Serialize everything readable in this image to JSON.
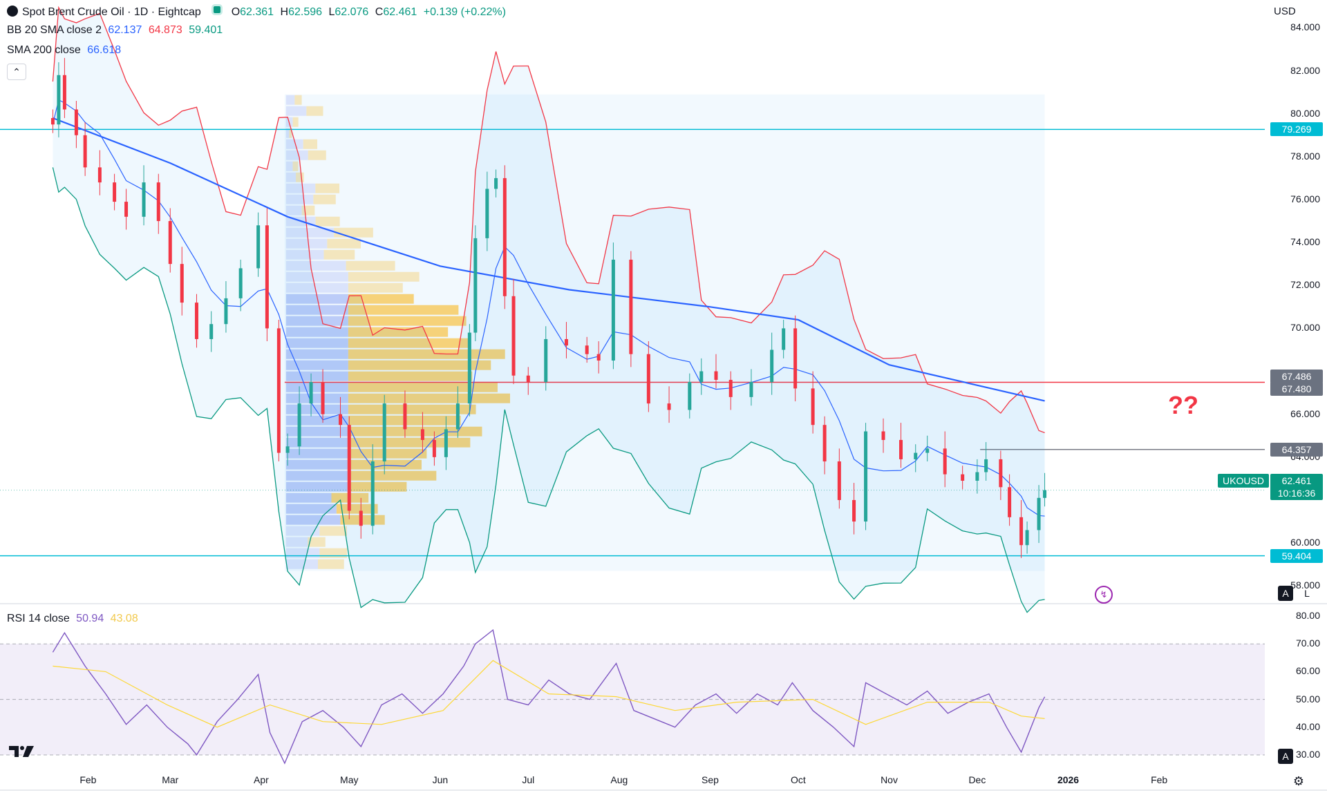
{
  "header": {
    "title": "Spot Brent Crude Oil · 1D · Eightcap",
    "ohlc": {
      "o_label": "O",
      "o": "62.361",
      "h_label": "H",
      "h": "62.596",
      "l_label": "L",
      "l": "62.076",
      "c_label": "C",
      "c": "62.461",
      "change": "+0.139 (+0.22%)"
    },
    "currency": "USD"
  },
  "indicators": {
    "bb": {
      "label": "BB 20 SMA close 2",
      "basis": "62.137",
      "upper": "64.873",
      "lower": "59.401"
    },
    "sma": {
      "label": "SMA 200 close",
      "value": "66.618"
    },
    "rsi": {
      "label": "RSI 14 close",
      "value": "50.94",
      "ma": "43.08"
    }
  },
  "price_axis": {
    "ticks": [
      "84.000",
      "82.000",
      "80.000",
      "78.000",
      "76.000",
      "74.000",
      "72.000",
      "70.000",
      "66.000",
      "64.000",
      "60.000",
      "58.000"
    ],
    "badges": [
      {
        "value": "79.269",
        "color": "#00bcd4"
      },
      {
        "value": "67.486",
        "color": "#6b7280"
      },
      {
        "value": "67.480",
        "color": "#6b7280"
      },
      {
        "value": "64.357",
        "color": "#6b7280"
      },
      {
        "value": "59.404",
        "color": "#00bcd4"
      }
    ],
    "symbol_tag": "UKOUSD",
    "last_price": "62.461",
    "countdown": "10:16:36"
  },
  "rsi_axis": {
    "ticks": [
      "80.00",
      "70.00",
      "60.00",
      "50.00",
      "40.00",
      "30.00"
    ]
  },
  "time_axis": {
    "ticks": [
      "Feb",
      "Mar",
      "Apr",
      "May",
      "Jun",
      "Jul",
      "Aug",
      "Sep",
      "Oct",
      "Nov",
      "Dec",
      "2026",
      "Feb"
    ]
  },
  "annotation": "??",
  "controls": {
    "auto_label": "A",
    "log_label": "L",
    "rsi_auto_label": "A"
  },
  "colors": {
    "up": "#26a69a",
    "down": "#f23645",
    "sma200": "#2962ff",
    "bb_upper": "#f23645",
    "bb_lower": "#089981",
    "bb_basis": "#2962ff",
    "level_cyan": "#00bcd4",
    "level_red": "#f23645",
    "rsi": "#7e57c2",
    "rsi_ma": "#fdd835"
  },
  "chart_data": {
    "type": "candlestick",
    "title": "Spot Brent Crude Oil · 1D · Eightcap",
    "timeframe": "1D",
    "ylim": [
      57.3,
      85.3
    ],
    "price_levels": [
      79.269,
      67.486,
      67.48,
      64.357,
      59.404
    ],
    "volume_profile_range": {
      "from": "2025-04-09",
      "to": "2025-12-24",
      "high": 80.9,
      "low": 58.7,
      "poc": 67.48
    },
    "sma200_line": [
      {
        "date": "2025-01-20",
        "value": 79.8
      },
      {
        "date": "2025-03-01",
        "value": 77.7
      },
      {
        "date": "2025-04-10",
        "value": 75.2
      },
      {
        "date": "2025-06-01",
        "value": 72.9
      },
      {
        "date": "2025-07-15",
        "value": 71.8
      },
      {
        "date": "2025-09-01",
        "value": 71.0
      },
      {
        "date": "2025-10-01",
        "value": 70.4
      },
      {
        "date": "2025-11-01",
        "value": 68.3
      },
      {
        "date": "2025-12-24",
        "value": 66.62
      }
    ],
    "closes": [
      {
        "date": "2025-01-20",
        "value": 79.5
      },
      {
        "date": "2025-01-22",
        "value": 81.8
      },
      {
        "date": "2025-01-24",
        "value": 80.2
      },
      {
        "date": "2025-01-28",
        "value": 79.0
      },
      {
        "date": "2025-01-31",
        "value": 77.5
      },
      {
        "date": "2025-02-05",
        "value": 76.8
      },
      {
        "date": "2025-02-10",
        "value": 75.9
      },
      {
        "date": "2025-02-14",
        "value": 75.2
      },
      {
        "date": "2025-02-20",
        "value": 76.8
      },
      {
        "date": "2025-02-25",
        "value": 75.0
      },
      {
        "date": "2025-03-01",
        "value": 73.0
      },
      {
        "date": "2025-03-05",
        "value": 71.2
      },
      {
        "date": "2025-03-10",
        "value": 69.5
      },
      {
        "date": "2025-03-15",
        "value": 70.2
      },
      {
        "date": "2025-03-20",
        "value": 71.4
      },
      {
        "date": "2025-03-25",
        "value": 72.8
      },
      {
        "date": "2025-03-31",
        "value": 74.8
      },
      {
        "date": "2025-04-03",
        "value": 70.0
      },
      {
        "date": "2025-04-07",
        "value": 64.2
      },
      {
        "date": "2025-04-10",
        "value": 64.5
      },
      {
        "date": "2025-04-14",
        "value": 66.5
      },
      {
        "date": "2025-04-18",
        "value": 67.5
      },
      {
        "date": "2025-04-22",
        "value": 66.0
      },
      {
        "date": "2025-04-28",
        "value": 65.5
      },
      {
        "date": "2025-05-01",
        "value": 61.5
      },
      {
        "date": "2025-05-05",
        "value": 60.8
      },
      {
        "date": "2025-05-09",
        "value": 63.8
      },
      {
        "date": "2025-05-13",
        "value": 66.5
      },
      {
        "date": "2025-05-20",
        "value": 65.3
      },
      {
        "date": "2025-05-26",
        "value": 64.8
      },
      {
        "date": "2025-05-30",
        "value": 64.0
      },
      {
        "date": "2025-06-03",
        "value": 65.3
      },
      {
        "date": "2025-06-07",
        "value": 66.5
      },
      {
        "date": "2025-06-11",
        "value": 69.8
      },
      {
        "date": "2025-06-13",
        "value": 74.2
      },
      {
        "date": "2025-06-17",
        "value": 76.5
      },
      {
        "date": "2025-06-20",
        "value": 77.0
      },
      {
        "date": "2025-06-23",
        "value": 71.5
      },
      {
        "date": "2025-06-26",
        "value": 67.8
      },
      {
        "date": "2025-07-01",
        "value": 67.5
      },
      {
        "date": "2025-07-07",
        "value": 69.5
      },
      {
        "date": "2025-07-14",
        "value": 69.2
      },
      {
        "date": "2025-07-21",
        "value": 68.8
      },
      {
        "date": "2025-07-25",
        "value": 68.5
      },
      {
        "date": "2025-07-30",
        "value": 73.2
      },
      {
        "date": "2025-08-05",
        "value": 68.8
      },
      {
        "date": "2025-08-11",
        "value": 66.5
      },
      {
        "date": "2025-08-18",
        "value": 66.2
      },
      {
        "date": "2025-08-25",
        "value": 67.5
      },
      {
        "date": "2025-08-29",
        "value": 68.0
      },
      {
        "date": "2025-09-03",
        "value": 67.6
      },
      {
        "date": "2025-09-08",
        "value": 66.8
      },
      {
        "date": "2025-09-15",
        "value": 67.5
      },
      {
        "date": "2025-09-22",
        "value": 69.0
      },
      {
        "date": "2025-09-26",
        "value": 70.0
      },
      {
        "date": "2025-09-30",
        "value": 67.2
      },
      {
        "date": "2025-10-06",
        "value": 65.5
      },
      {
        "date": "2025-10-10",
        "value": 63.8
      },
      {
        "date": "2025-10-15",
        "value": 62.0
      },
      {
        "date": "2025-10-20",
        "value": 61.0
      },
      {
        "date": "2025-10-24",
        "value": 65.2
      },
      {
        "date": "2025-10-30",
        "value": 64.8
      },
      {
        "date": "2025-11-05",
        "value": 63.9
      },
      {
        "date": "2025-11-10",
        "value": 64.2
      },
      {
        "date": "2025-11-14",
        "value": 64.4
      },
      {
        "date": "2025-11-20",
        "value": 63.2
      },
      {
        "date": "2025-11-26",
        "value": 62.9
      },
      {
        "date": "2025-12-01",
        "value": 63.3
      },
      {
        "date": "2025-12-04",
        "value": 63.9
      },
      {
        "date": "2025-12-09",
        "value": 62.6
      },
      {
        "date": "2025-12-12",
        "value": 61.2
      },
      {
        "date": "2025-12-16",
        "value": 59.9
      },
      {
        "date": "2025-12-18",
        "value": 60.6
      },
      {
        "date": "2025-12-22",
        "value": 62.1
      },
      {
        "date": "2025-12-24",
        "value": 62.461
      }
    ],
    "rsi_ylim": [
      27,
      83
    ],
    "rsi_bands": [
      30,
      70
    ],
    "rsi": [
      {
        "date": "2025-01-20",
        "value": 67
      },
      {
        "date": "2025-01-24",
        "value": 74
      },
      {
        "date": "2025-01-31",
        "value": 62
      },
      {
        "date": "2025-02-07",
        "value": 52
      },
      {
        "date": "2025-02-14",
        "value": 41
      },
      {
        "date": "2025-02-21",
        "value": 48
      },
      {
        "date": "2025-02-28",
        "value": 40
      },
      {
        "date": "2025-03-07",
        "value": 34
      },
      {
        "date": "2025-03-10",
        "value": 30
      },
      {
        "date": "2025-03-17",
        "value": 42
      },
      {
        "date": "2025-03-24",
        "value": 50
      },
      {
        "date": "2025-03-31",
        "value": 59
      },
      {
        "date": "2025-04-04",
        "value": 38
      },
      {
        "date": "2025-04-09",
        "value": 27
      },
      {
        "date": "2025-04-15",
        "value": 42
      },
      {
        "date": "2025-04-22",
        "value": 46
      },
      {
        "date": "2025-04-29",
        "value": 40
      },
      {
        "date": "2025-05-05",
        "value": 33
      },
      {
        "date": "2025-05-12",
        "value": 48
      },
      {
        "date": "2025-05-19",
        "value": 52
      },
      {
        "date": "2025-05-26",
        "value": 45
      },
      {
        "date": "2025-06-02",
        "value": 52
      },
      {
        "date": "2025-06-09",
        "value": 62
      },
      {
        "date": "2025-06-13",
        "value": 70
      },
      {
        "date": "2025-06-19",
        "value": 75
      },
      {
        "date": "2025-06-24",
        "value": 50
      },
      {
        "date": "2025-07-01",
        "value": 48
      },
      {
        "date": "2025-07-08",
        "value": 57
      },
      {
        "date": "2025-07-15",
        "value": 52
      },
      {
        "date": "2025-07-22",
        "value": 50
      },
      {
        "date": "2025-07-31",
        "value": 63
      },
      {
        "date": "2025-08-06",
        "value": 46
      },
      {
        "date": "2025-08-13",
        "value": 43
      },
      {
        "date": "2025-08-20",
        "value": 40
      },
      {
        "date": "2025-08-27",
        "value": 48
      },
      {
        "date": "2025-09-03",
        "value": 52
      },
      {
        "date": "2025-09-10",
        "value": 45
      },
      {
        "date": "2025-09-17",
        "value": 52
      },
      {
        "date": "2025-09-24",
        "value": 48
      },
      {
        "date": "2025-09-29",
        "value": 56
      },
      {
        "date": "2025-10-06",
        "value": 46
      },
      {
        "date": "2025-10-13",
        "value": 40
      },
      {
        "date": "2025-10-20",
        "value": 33
      },
      {
        "date": "2025-10-24",
        "value": 56
      },
      {
        "date": "2025-10-31",
        "value": 52
      },
      {
        "date": "2025-11-07",
        "value": 48
      },
      {
        "date": "2025-11-14",
        "value": 53
      },
      {
        "date": "2025-11-21",
        "value": 45
      },
      {
        "date": "2025-11-28",
        "value": 49
      },
      {
        "date": "2025-12-05",
        "value": 52
      },
      {
        "date": "2025-12-11",
        "value": 40
      },
      {
        "date": "2025-12-16",
        "value": 31
      },
      {
        "date": "2025-12-22",
        "value": 47
      },
      {
        "date": "2025-12-24",
        "value": 50.94
      }
    ],
    "rsi_ma": [
      {
        "date": "2025-01-20",
        "value": 62
      },
      {
        "date": "2025-02-07",
        "value": 60
      },
      {
        "date": "2025-02-28",
        "value": 48
      },
      {
        "date": "2025-03-17",
        "value": 40
      },
      {
        "date": "2025-04-04",
        "value": 48
      },
      {
        "date": "2025-04-22",
        "value": 42
      },
      {
        "date": "2025-05-12",
        "value": 41
      },
      {
        "date": "2025-06-02",
        "value": 46
      },
      {
        "date": "2025-06-19",
        "value": 64
      },
      {
        "date": "2025-07-08",
        "value": 52
      },
      {
        "date": "2025-07-31",
        "value": 51
      },
      {
        "date": "2025-08-20",
        "value": 46
      },
      {
        "date": "2025-09-10",
        "value": 49
      },
      {
        "date": "2025-10-06",
        "value": 50
      },
      {
        "date": "2025-10-24",
        "value": 41
      },
      {
        "date": "2025-11-14",
        "value": 49
      },
      {
        "date": "2025-12-05",
        "value": 49
      },
      {
        "date": "2025-12-16",
        "value": 44
      },
      {
        "date": "2025-12-24",
        "value": 43.08
      }
    ]
  }
}
